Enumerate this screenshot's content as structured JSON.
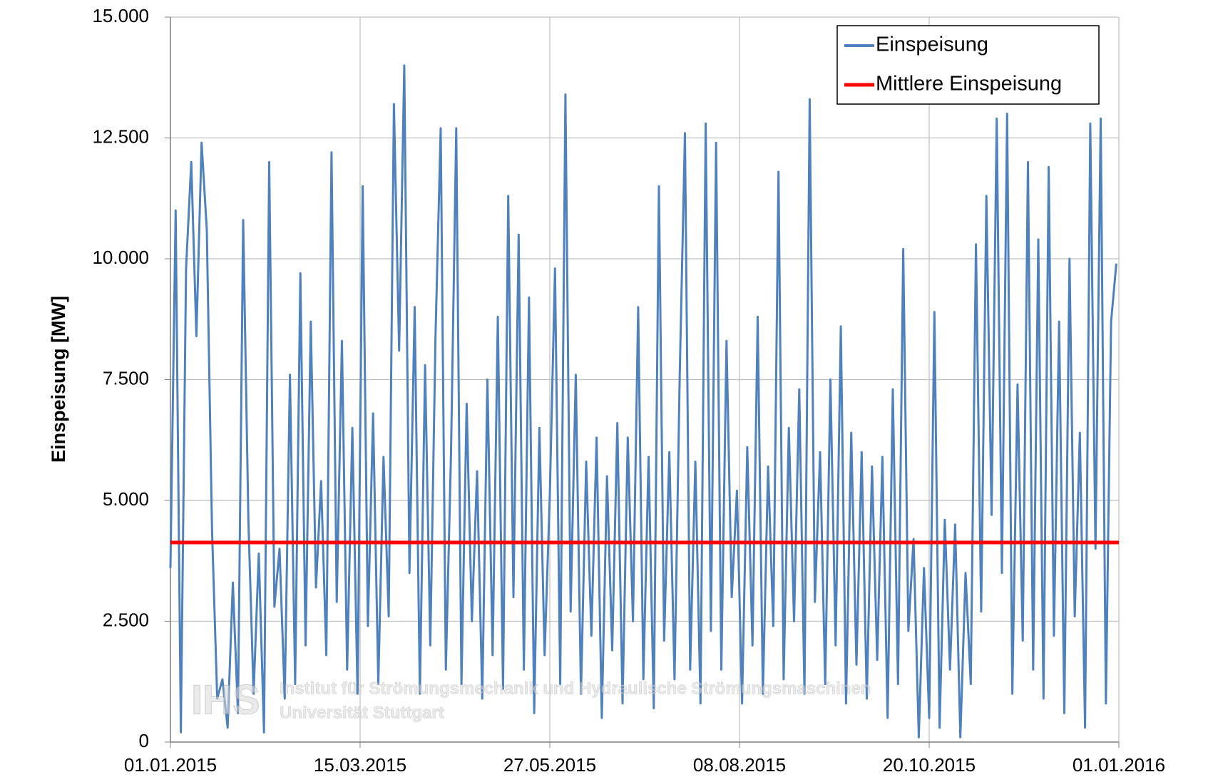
{
  "chart_data": {
    "type": "line",
    "ylabel": "Einspeisung [MW]",
    "xlim": [
      0,
      365
    ],
    "xticks": [
      {
        "value": 0,
        "label": "01.01.2015"
      },
      {
        "value": 73,
        "label": "15.03.2015"
      },
      {
        "value": 146,
        "label": "27.05.2015"
      },
      {
        "value": 219,
        "label": "08.08.2015"
      },
      {
        "value": 292,
        "label": "20.10.2015"
      },
      {
        "value": 365,
        "label": "01.01.2016"
      }
    ],
    "ylim": [
      0,
      15000
    ],
    "yticks": [
      0,
      {
        "value": 2500,
        "label": "2.500"
      },
      {
        "value": 5000,
        "label": "5.000"
      },
      {
        "value": 7500,
        "label": "7.500"
      },
      {
        "value": 10000,
        "label": "10.000"
      },
      {
        "value": 12500,
        "label": "12.500"
      },
      {
        "value": 15000,
        "label": "15.000"
      }
    ],
    "grid": true,
    "legend": "upper right",
    "annotations": [
      "IHS",
      "Institut für Strömungsmechanik und Hydraulische Strömungsmaschinen",
      "Universität Stuttgart"
    ],
    "series": [
      {
        "name": "Einspeisung",
        "color": "#4f81bd",
        "x": [
          0,
          2,
          4,
          6,
          8,
          10,
          12,
          14,
          16,
          18,
          20,
          22,
          24,
          26,
          28,
          30,
          32,
          34,
          36,
          38,
          40,
          42,
          44,
          46,
          48,
          50,
          52,
          54,
          56,
          58,
          60,
          62,
          64,
          66,
          68,
          70,
          72,
          74,
          76,
          78,
          80,
          82,
          84,
          86,
          88,
          90,
          92,
          94,
          96,
          98,
          100,
          102,
          104,
          106,
          108,
          110,
          112,
          114,
          116,
          118,
          120,
          122,
          124,
          126,
          128,
          130,
          132,
          134,
          136,
          138,
          140,
          142,
          144,
          146,
          148,
          150,
          152,
          154,
          156,
          158,
          160,
          162,
          164,
          166,
          168,
          170,
          172,
          174,
          176,
          178,
          180,
          182,
          184,
          186,
          188,
          190,
          192,
          194,
          196,
          198,
          200,
          202,
          204,
          206,
          208,
          210,
          212,
          214,
          216,
          218,
          220,
          222,
          224,
          226,
          228,
          230,
          232,
          234,
          236,
          238,
          240,
          242,
          244,
          246,
          248,
          250,
          252,
          254,
          256,
          258,
          260,
          262,
          264,
          266,
          268,
          270,
          272,
          274,
          276,
          278,
          280,
          282,
          284,
          286,
          288,
          290,
          292,
          294,
          296,
          298,
          300,
          302,
          304,
          306,
          308,
          310,
          312,
          314,
          316,
          318,
          320,
          322,
          324,
          326,
          328,
          330,
          332,
          334,
          336,
          338,
          340,
          342,
          344,
          346,
          348,
          350,
          352,
          354,
          356,
          358,
          360,
          362,
          364
        ],
        "values": [
          3600,
          11000,
          200,
          9800,
          12000,
          8400,
          12400,
          10600,
          4400,
          900,
          1300,
          300,
          3300,
          600,
          10800,
          4600,
          1000,
          3900,
          200,
          12000,
          2800,
          4000,
          900,
          7600,
          1200,
          9700,
          2000,
          8700,
          3200,
          5400,
          1800,
          12200,
          2900,
          8300,
          1500,
          6500,
          1000,
          11500,
          2400,
          6800,
          1200,
          5900,
          2600,
          13200,
          8100,
          14000,
          3500,
          9000,
          1000,
          7800,
          2000,
          8400,
          12700,
          1500,
          6000,
          12700,
          1200,
          7000,
          2500,
          5600,
          900,
          7500,
          1800,
          8800,
          1100,
          11300,
          3000,
          10500,
          1500,
          9200,
          600,
          6500,
          1800,
          5100,
          9800,
          1200,
          13400,
          2700,
          7600,
          1000,
          5800,
          2200,
          6300,
          500,
          5500,
          1900,
          6600,
          800,
          6300,
          2500,
          9000,
          1300,
          5900,
          700,
          11500,
          2100,
          6000,
          1300,
          7600,
          12600,
          1500,
          5800,
          800,
          12800,
          2300,
          12400,
          1500,
          8300,
          3000,
          5200,
          800,
          6100,
          2000,
          8800,
          1000,
          5700,
          2400,
          11800,
          1300,
          6500,
          2500,
          7300,
          1000,
          13300,
          2900,
          6000,
          1200,
          7500,
          2000,
          8600,
          800,
          6400,
          1600,
          6000,
          900,
          5700,
          1700,
          5900,
          500,
          7300,
          1200,
          10200,
          2300,
          4200,
          100,
          3600,
          500,
          8900,
          300,
          4600,
          1500,
          4500,
          100,
          3500,
          1200,
          10300,
          2700,
          11300,
          4700,
          12900,
          3500,
          13000,
          1000,
          7400,
          2100,
          12000,
          1500,
          10400,
          900,
          11900,
          2200,
          8700,
          600,
          10000,
          2600,
          6400,
          300,
          12800,
          4000,
          12900,
          800,
          8700,
          9900
        ]
      },
      {
        "name": "Mittlere Einspeisung",
        "color": "#ff0000",
        "x": [
          0,
          365
        ],
        "values": [
          4130,
          4130
        ]
      }
    ]
  }
}
